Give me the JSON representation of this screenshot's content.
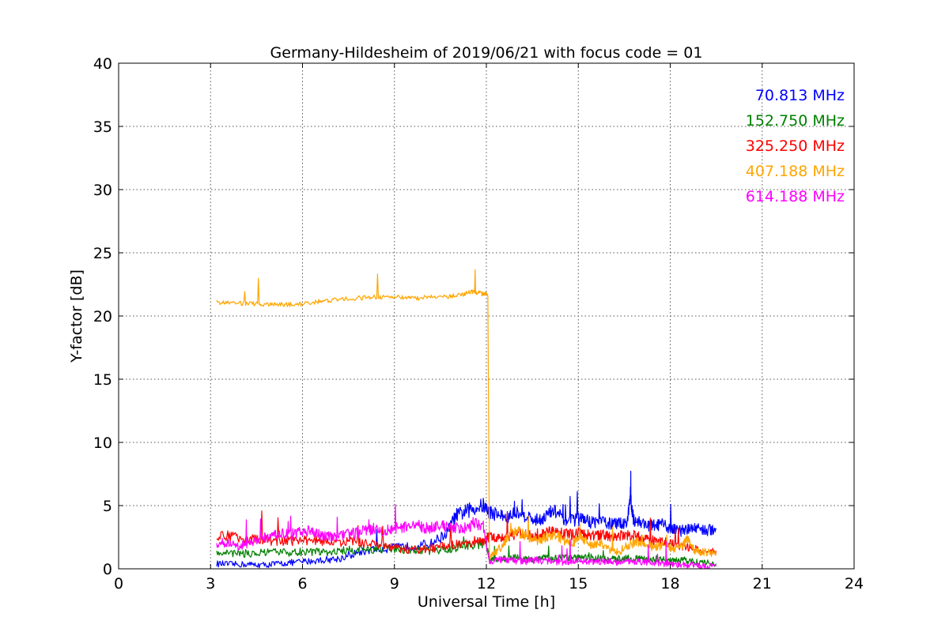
{
  "chart_data": {
    "type": "line",
    "title": "Germany-Hildesheim of 2019/06/21 with focus code = 01",
    "xlabel": "Universal Time [h]",
    "ylabel": "Y-factor [dB]",
    "xlim": [
      0,
      24
    ],
    "ylim": [
      0,
      40
    ],
    "xticks": [
      0,
      3,
      6,
      9,
      12,
      15,
      18,
      21,
      24
    ],
    "yticks": [
      0,
      5,
      10,
      15,
      20,
      25,
      30,
      35,
      40
    ],
    "grid": true,
    "legend_position": "top-right",
    "series": [
      {
        "name": "70.813 MHz",
        "color": "#0000ff",
        "x": [
          3.2,
          3.7,
          4.2,
          4.7,
          5.2,
          5.7,
          6.2,
          6.7,
          7.2,
          7.7,
          8.2,
          8.7,
          9.2,
          9.7,
          10.2,
          10.7,
          11.0,
          11.3,
          11.6,
          11.9,
          12.1,
          12.4,
          12.7,
          13.0,
          13.3,
          13.6,
          13.9,
          14.2,
          14.5,
          14.8,
          15.1,
          15.4,
          15.7,
          16.0,
          16.3,
          16.6,
          16.7,
          16.8,
          17.1,
          17.4,
          17.7,
          18.0,
          18.3,
          18.6,
          18.9,
          19.2,
          19.5
        ],
        "y": [
          0.4,
          0.35,
          0.35,
          0.3,
          0.4,
          0.5,
          0.6,
          0.7,
          0.8,
          1.2,
          1.5,
          1.6,
          1.7,
          1.8,
          2.0,
          2.8,
          4.2,
          4.5,
          4.8,
          5.0,
          4.5,
          4.3,
          4.0,
          4.6,
          4.2,
          3.8,
          4.1,
          4.6,
          4.0,
          3.8,
          4.0,
          3.7,
          3.8,
          3.6,
          3.5,
          3.8,
          5.8,
          3.9,
          3.6,
          3.4,
          3.5,
          3.2,
          3.0,
          3.1,
          3.3,
          3.0,
          3.2
        ]
      },
      {
        "name": "152.750 MHz",
        "color": "#008000",
        "x": [
          3.2,
          3.7,
          4.2,
          4.7,
          5.2,
          5.7,
          6.2,
          6.7,
          7.2,
          7.7,
          8.2,
          8.7,
          9.2,
          9.7,
          10.2,
          10.7,
          11.2,
          11.7,
          12.0,
          12.1,
          12.4,
          12.7,
          13.0,
          13.3,
          13.6,
          13.9,
          14.2,
          14.5,
          14.8,
          15.1,
          15.4,
          15.7,
          16.0,
          16.3,
          16.6,
          16.9,
          17.2,
          17.5,
          17.8,
          18.1,
          18.4,
          18.7,
          19.0,
          19.5
        ],
        "y": [
          1.3,
          1.25,
          1.2,
          1.25,
          1.3,
          1.3,
          1.35,
          1.3,
          1.4,
          1.5,
          1.5,
          1.6,
          1.5,
          1.5,
          1.4,
          1.5,
          1.8,
          1.9,
          2.0,
          0.8,
          0.7,
          0.8,
          0.9,
          0.7,
          0.8,
          0.9,
          0.8,
          1.0,
          0.9,
          0.8,
          0.9,
          0.8,
          0.7,
          0.8,
          0.9,
          0.8,
          0.7,
          0.8,
          0.7,
          0.6,
          0.7,
          0.6,
          0.5,
          0.4
        ]
      },
      {
        "name": "325.250 MHz",
        "color": "#ff0000",
        "x": [
          3.2,
          3.7,
          4.2,
          4.7,
          5.2,
          5.7,
          6.2,
          6.7,
          7.2,
          7.7,
          8.2,
          8.7,
          9.2,
          9.7,
          10.2,
          10.7,
          11.2,
          11.7,
          12.0,
          12.1,
          12.4,
          12.7,
          13.0,
          13.3,
          13.6,
          13.9,
          14.2,
          14.5,
          14.8,
          15.1,
          15.4,
          15.7,
          16.0,
          16.3,
          16.6,
          16.9,
          17.2,
          17.5,
          17.8,
          18.1,
          18.4,
          18.7,
          19.0,
          19.5
        ],
        "y": [
          2.5,
          2.6,
          2.4,
          2.3,
          2.2,
          2.2,
          2.3,
          2.2,
          2.0,
          2.2,
          2.0,
          1.8,
          1.6,
          1.5,
          1.6,
          1.8,
          2.0,
          2.2,
          2.3,
          2.6,
          2.5,
          2.6,
          2.8,
          2.7,
          2.6,
          2.8,
          3.0,
          2.8,
          2.7,
          2.9,
          2.6,
          2.7,
          2.6,
          2.6,
          2.7,
          2.6,
          2.4,
          2.2,
          2.1,
          2.0,
          1.8,
          1.6,
          1.5,
          1.4
        ]
      },
      {
        "name": "407.188 MHz",
        "color": "#ffa500",
        "x": [
          3.2,
          3.7,
          4.2,
          4.7,
          5.2,
          5.7,
          6.2,
          6.7,
          7.2,
          7.7,
          8.2,
          8.7,
          9.2,
          9.7,
          10.2,
          10.7,
          11.2,
          11.5,
          11.8,
          12.05,
          12.1,
          12.4,
          12.7,
          13.0,
          13.3,
          13.6,
          13.9,
          14.2,
          14.5,
          14.8,
          15.1,
          15.4,
          15.7,
          16.0,
          16.3,
          16.6,
          16.9,
          17.2,
          17.5,
          17.8,
          18.1,
          18.4,
          18.6,
          18.8,
          19.1,
          19.5
        ],
        "y": [
          21.1,
          21.0,
          21.0,
          20.9,
          20.9,
          20.9,
          21.0,
          21.2,
          21.3,
          21.4,
          21.5,
          21.5,
          21.5,
          21.4,
          21.5,
          21.5,
          21.7,
          21.9,
          21.8,
          21.7,
          0.8,
          1.5,
          2.5,
          3.0,
          2.6,
          2.2,
          2.5,
          2.8,
          2.3,
          2.0,
          2.6,
          1.8,
          2.2,
          1.5,
          1.3,
          1.8,
          2.2,
          2.0,
          1.7,
          1.9,
          1.6,
          1.8,
          2.4,
          1.4,
          1.3,
          1.2
        ]
      },
      {
        "name": "614.188 MHz",
        "color": "#ff00ff",
        "x": [
          3.2,
          3.5,
          3.8,
          4.1,
          4.4,
          4.7,
          5.0,
          5.3,
          5.6,
          5.9,
          6.2,
          6.5,
          6.8,
          7.1,
          7.4,
          7.7,
          8.0,
          8.3,
          8.6,
          8.9,
          9.2,
          9.5,
          9.8,
          10.1,
          10.4,
          10.7,
          11.0,
          11.3,
          11.6,
          11.9,
          12.1,
          12.4,
          12.7,
          13.0,
          13.3,
          13.6,
          13.9,
          14.2,
          14.5,
          14.8,
          15.1,
          15.4,
          15.7,
          16.0,
          16.3,
          16.6,
          16.9,
          17.2,
          17.5,
          17.8,
          18.1,
          18.4,
          18.7,
          19.0,
          19.5
        ],
        "y": [
          2.0,
          2.1,
          1.8,
          1.9,
          2.2,
          2.4,
          2.6,
          2.8,
          2.7,
          2.9,
          3.0,
          2.8,
          2.6,
          2.5,
          2.7,
          2.8,
          3.0,
          3.2,
          3.0,
          3.1,
          3.3,
          3.2,
          3.4,
          3.2,
          3.3,
          3.4,
          3.3,
          3.2,
          3.6,
          3.4,
          0.6,
          0.7,
          0.7,
          0.6,
          0.6,
          0.7,
          0.6,
          0.6,
          0.5,
          0.6,
          0.6,
          0.5,
          0.6,
          0.6,
          0.5,
          0.6,
          0.6,
          0.5,
          0.5,
          0.4,
          0.4,
          0.3,
          0.3,
          0.2,
          0.2
        ]
      }
    ]
  }
}
